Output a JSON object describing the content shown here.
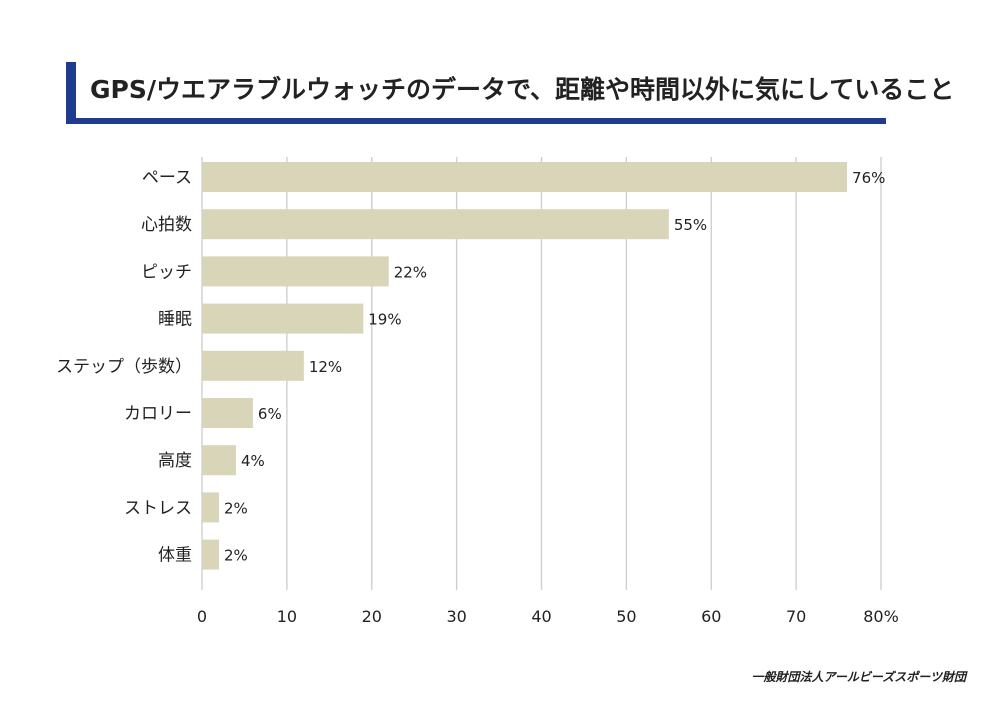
{
  "title": "GPS/ウエアラブルウォッチのデータで、距離や時間以外に気にしていること",
  "credit": "一般財団法人アールビーズスポーツ財団",
  "chart_data": {
    "type": "bar",
    "orientation": "horizontal",
    "categories": [
      "ペース",
      "心拍数",
      "ピッチ",
      "睡眠",
      "ステップ（歩数）",
      "カロリー",
      "高度",
      "ストレス",
      "体重"
    ],
    "values": [
      76,
      55,
      22,
      19,
      12,
      6,
      4,
      2,
      2
    ],
    "data_labels": [
      "76%",
      "55%",
      "22%",
      "19%",
      "12%",
      "6%",
      "4%",
      "2%",
      "2%"
    ],
    "xticks": [
      "0",
      "10",
      "20",
      "30",
      "40",
      "50",
      "60",
      "70",
      "80%"
    ],
    "xlim": [
      0,
      80
    ],
    "grid": true,
    "bar_color": "#d9d5b8",
    "grid_color": "#cfcfcf"
  }
}
